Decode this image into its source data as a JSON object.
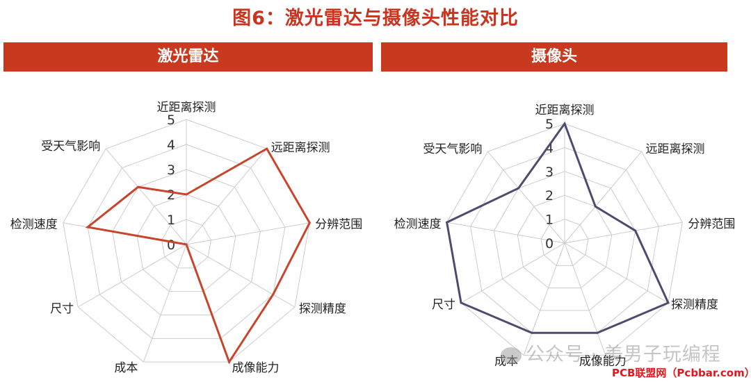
{
  "title": "图6：激光雷达与摄像头性能对比",
  "banners": {
    "left": "激光雷达",
    "right": "摄像头"
  },
  "colors": {
    "accent": "#C8391F",
    "lidar": "#C8452C",
    "camera": "#4E4C6E",
    "grid": "#CCCCCC"
  },
  "chart_data": [
    {
      "type": "radar",
      "title": "激光雷达",
      "axes": [
        "近距离探测",
        "远距离探测",
        "分辨范围",
        "探测精度",
        "成像能力",
        "成本",
        "尺寸",
        "检测速度",
        "受天气影响"
      ],
      "values": [
        2,
        5,
        5,
        4,
        5,
        0,
        0,
        4,
        3
      ],
      "ticks": [
        "0",
        "1",
        "2",
        "3",
        "4",
        "5"
      ],
      "range": [
        0,
        5
      ]
    },
    {
      "type": "radar",
      "title": "摄像头",
      "axes": [
        "近距离探测",
        "远距离探测",
        "分辨范围",
        "探测精度",
        "成像能力",
        "成本",
        "尺寸",
        "检测速度",
        "受天气影响"
      ],
      "values": [
        5,
        2,
        3,
        5,
        4,
        4,
        5,
        5,
        3
      ],
      "ticks": [
        "0",
        "1",
        "2",
        "3",
        "4",
        "5"
      ],
      "range": [
        0,
        5
      ]
    }
  ],
  "watermark": {
    "text": "公众号 · 美男子玩编程",
    "site": "PCB联盟网（Pcbbar.com）"
  }
}
